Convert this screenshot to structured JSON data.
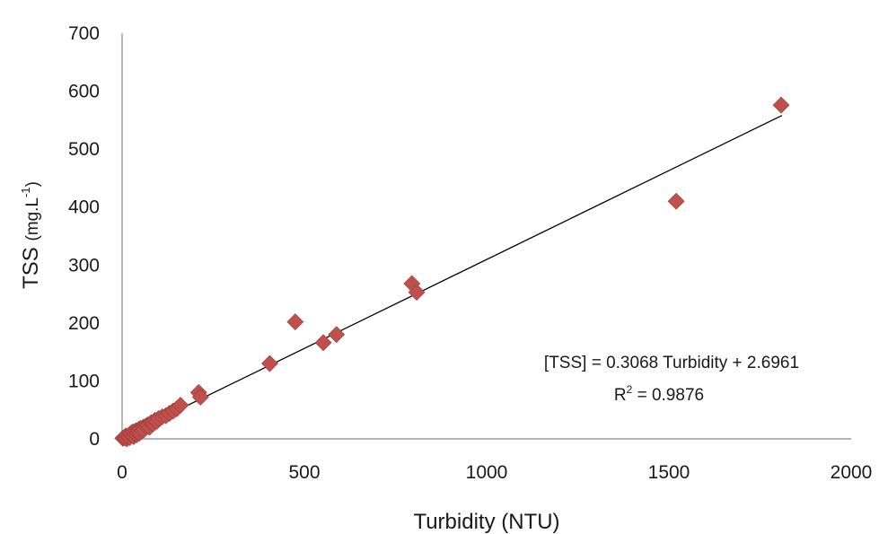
{
  "chart_data": {
    "type": "scatter",
    "title": "",
    "xlabel": "Turbidity (NTU)",
    "ylabel_main": "TSS",
    "ylabel_unit_base": "(mg.L",
    "ylabel_unit_sup": "-1",
    "ylabel_unit_end": ")",
    "xlim": [
      0,
      2000
    ],
    "ylim": [
      0,
      700
    ],
    "xticks": [
      0,
      500,
      1000,
      1500,
      2000
    ],
    "yticks": [
      0,
      100,
      200,
      300,
      400,
      500,
      600,
      700
    ],
    "grid": false,
    "legend": "none",
    "marker": "diamond",
    "marker_color": "#C0504D",
    "trendline": {
      "slope": 0.3068,
      "intercept": 2.6961,
      "x_range": [
        0,
        1810
      ],
      "color": "#000000"
    },
    "annotation": {
      "equation": "[TSS] = 0.3068 Turbidity + 2.6961",
      "r2_prefix": "R",
      "r2_sup": "2",
      "r2_value": " = 0.9876"
    },
    "points": [
      {
        "x": 2,
        "y": 1
      },
      {
        "x": 5,
        "y": 2
      },
      {
        "x": 8,
        "y": 3
      },
      {
        "x": 10,
        "y": 5
      },
      {
        "x": 12,
        "y": 0
      },
      {
        "x": 15,
        "y": 4
      },
      {
        "x": 18,
        "y": 6
      },
      {
        "x": 20,
        "y": 2
      },
      {
        "x": 22,
        "y": 8
      },
      {
        "x": 25,
        "y": 10
      },
      {
        "x": 28,
        "y": 6
      },
      {
        "x": 30,
        "y": 12
      },
      {
        "x": 32,
        "y": 4
      },
      {
        "x": 35,
        "y": 9
      },
      {
        "x": 38,
        "y": 14
      },
      {
        "x": 40,
        "y": 7
      },
      {
        "x": 42,
        "y": 11
      },
      {
        "x": 45,
        "y": 16
      },
      {
        "x": 48,
        "y": 10
      },
      {
        "x": 50,
        "y": 18
      },
      {
        "x": 55,
        "y": 14
      },
      {
        "x": 58,
        "y": 20
      },
      {
        "x": 60,
        "y": 16
      },
      {
        "x": 65,
        "y": 22
      },
      {
        "x": 70,
        "y": 24
      },
      {
        "x": 75,
        "y": 20
      },
      {
        "x": 80,
        "y": 28
      },
      {
        "x": 85,
        "y": 26
      },
      {
        "x": 90,
        "y": 32
      },
      {
        "x": 95,
        "y": 30
      },
      {
        "x": 100,
        "y": 35
      },
      {
        "x": 110,
        "y": 38
      },
      {
        "x": 120,
        "y": 40
      },
      {
        "x": 130,
        "y": 44
      },
      {
        "x": 140,
        "y": 48
      },
      {
        "x": 150,
        "y": 52
      },
      {
        "x": 160,
        "y": 58
      },
      {
        "x": 210,
        "y": 80
      },
      {
        "x": 215,
        "y": 72
      },
      {
        "x": 405,
        "y": 130
      },
      {
        "x": 475,
        "y": 202
      },
      {
        "x": 552,
        "y": 166
      },
      {
        "x": 588,
        "y": 180
      },
      {
        "x": 795,
        "y": 268
      },
      {
        "x": 808,
        "y": 253
      },
      {
        "x": 1520,
        "y": 410
      },
      {
        "x": 1808,
        "y": 576
      }
    ]
  }
}
